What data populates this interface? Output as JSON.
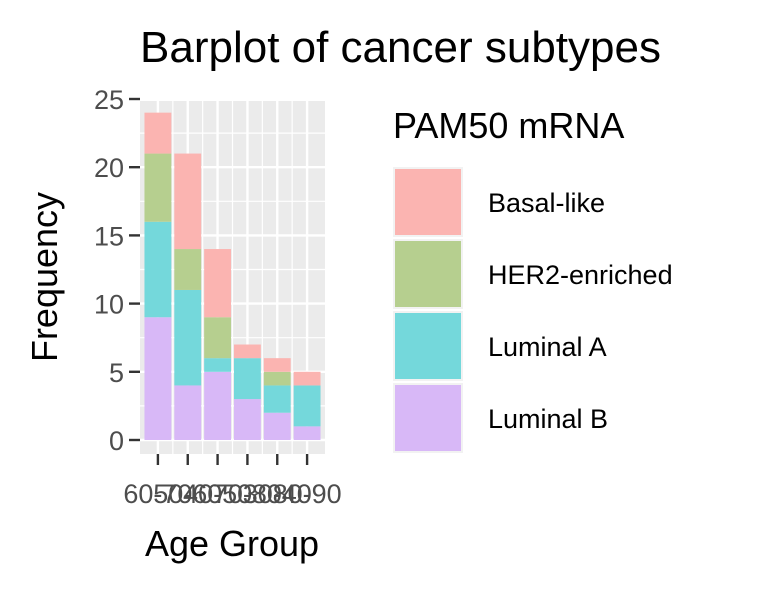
{
  "chart_data": {
    "type": "bar",
    "stacked": true,
    "title": "Barplot of cancer subtypes",
    "xlabel": "Age Group",
    "ylabel": "Frequency",
    "categories": [
      "60-70",
      "50-60",
      "40-50",
      "70-80",
      "30-40",
      "80-90"
    ],
    "series": [
      {
        "name": "Luminal B",
        "color": "#d8b8f7",
        "values": [
          9,
          4,
          5,
          3,
          2,
          1
        ]
      },
      {
        "name": "Luminal A",
        "color": "#74d8db",
        "values": [
          7,
          7,
          1,
          3,
          2,
          3
        ]
      },
      {
        "name": "HER2-enriched",
        "color": "#b6cf8f",
        "values": [
          5,
          3,
          3,
          0,
          1,
          0
        ]
      },
      {
        "name": "Basal-like",
        "color": "#fbb4b1",
        "values": [
          3,
          7,
          5,
          1,
          1,
          1
        ]
      }
    ],
    "yticks": [
      0,
      5,
      10,
      15,
      20,
      25
    ],
    "ylim": [
      0,
      25
    ],
    "grid": true,
    "legend": {
      "title": "PAM50 mRNA",
      "placement": "right",
      "order": [
        "Basal-like",
        "HER2-enriched",
        "Luminal A",
        "Luminal B"
      ]
    }
  }
}
